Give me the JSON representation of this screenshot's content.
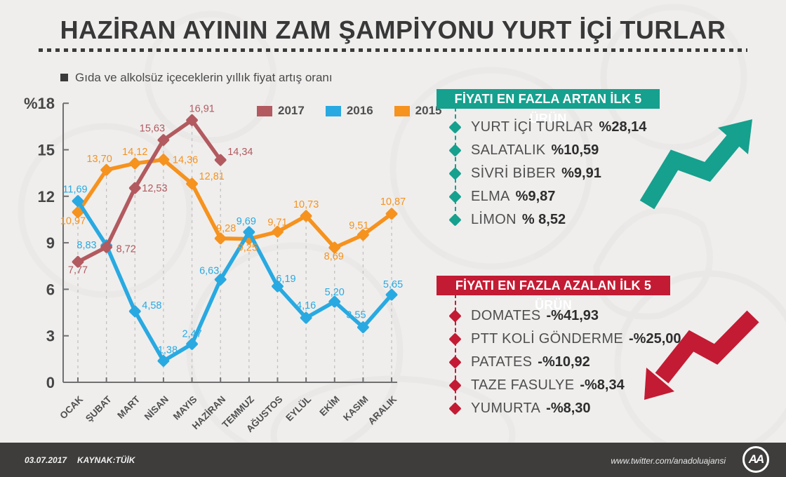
{
  "title": "HAZİRAN AYININ ZAM ŞAMPİYONU YURT İÇİ TURLAR",
  "subtitle": "Gıda ve alkolsüz içeceklerin yıllık fiyat artış oranı",
  "colors": {
    "background": "#efeeed",
    "title": "#383838",
    "teal": "#16a08e",
    "red": "#c31b33",
    "footer_bg": "#3e3d3c",
    "axis": "#707070",
    "grid": "#c2c1c0",
    "tick_text": "#464646",
    "month_text": "#4f4f4f"
  },
  "chart_data": {
    "type": "line",
    "title": "Gıda ve alkolsüz içeceklerin yıllık fiyat artış oranı",
    "categories": [
      "OCAK",
      "ŞUBAT",
      "MART",
      "NİSAN",
      "MAYIS",
      "HAZİRAN",
      "TEMMUZ",
      "AĞUSTOS",
      "EYLÜL",
      "EKİM",
      "KASIM",
      "ARALIK"
    ],
    "ylabel": "%",
    "ylim": [
      0,
      18
    ],
    "yticks": [
      0,
      3,
      6,
      9,
      12,
      15,
      18
    ],
    "ytick_labels": [
      "0",
      "3",
      "6",
      "9",
      "12",
      "15",
      "%18"
    ],
    "grid": "vertical-dashed",
    "legend_position": "top-right",
    "series": [
      {
        "name": "2017",
        "color": "#b25a5f",
        "values": [
          7.77,
          8.72,
          12.53,
          15.63,
          16.91,
          14.34
        ],
        "labels": [
          "7,77",
          "8,72",
          "12,53",
          "15,63",
          "16,91",
          "14,34"
        ]
      },
      {
        "name": "2016",
        "color": "#29a9e1",
        "values": [
          11.69,
          8.83,
          4.58,
          1.38,
          2.47,
          6.63,
          9.69,
          6.19,
          4.16,
          5.2,
          3.55,
          5.65
        ],
        "labels": [
          "11,69",
          "8,83",
          "4,58",
          "1,38",
          "2,47",
          "6,63",
          "9,69",
          "6,19",
          "4,16",
          "5,20",
          "3,55",
          "5,65"
        ]
      },
      {
        "name": "2015",
        "color": "#f6921e",
        "values": [
          10.97,
          13.7,
          14.12,
          14.36,
          12.81,
          9.28,
          9.25,
          9.71,
          10.73,
          8.69,
          9.51,
          10.87
        ],
        "labels": [
          "10,97",
          "13,70",
          "14,12",
          "14,36",
          "12,81",
          "9,28",
          "9,25",
          "9,71",
          "10,73",
          "8,69",
          "9,51",
          "10,87"
        ]
      }
    ]
  },
  "panels": {
    "gainers": {
      "header": "FİYATI EN FAZLA ARTAN İLK 5 ÜRÜN",
      "color": "#16a08e",
      "items": [
        {
          "name": "YURT İÇİ TURLAR",
          "value": "%28,14"
        },
        {
          "name": "SALATALIK",
          "value": "%10,59"
        },
        {
          "name": "SİVRİ BİBER",
          "value": "%9,91"
        },
        {
          "name": "ELMA",
          "value": "%9,87"
        },
        {
          "name": "LİMON",
          "value": "% 8,52"
        }
      ]
    },
    "losers": {
      "header": "FİYATI EN FAZLA AZALAN İLK 5 ÜRÜN",
      "color": "#c31b33",
      "items": [
        {
          "name": "DOMATES",
          "value": "-%41,93"
        },
        {
          "name": "PTT KOLİ GÖNDERME",
          "value": "-%25,00"
        },
        {
          "name": "PATATES",
          "value": "-%10,92"
        },
        {
          "name": "TAZE FASULYE",
          "value": "-%8,34"
        },
        {
          "name": "YUMURTA",
          "value": "-%8,30"
        }
      ]
    }
  },
  "footer": {
    "date": "03.07.2017",
    "source": "KAYNAK:TÜİK",
    "handle": "www.twitter.com/anadoluajansi",
    "logo_text": "AA"
  }
}
